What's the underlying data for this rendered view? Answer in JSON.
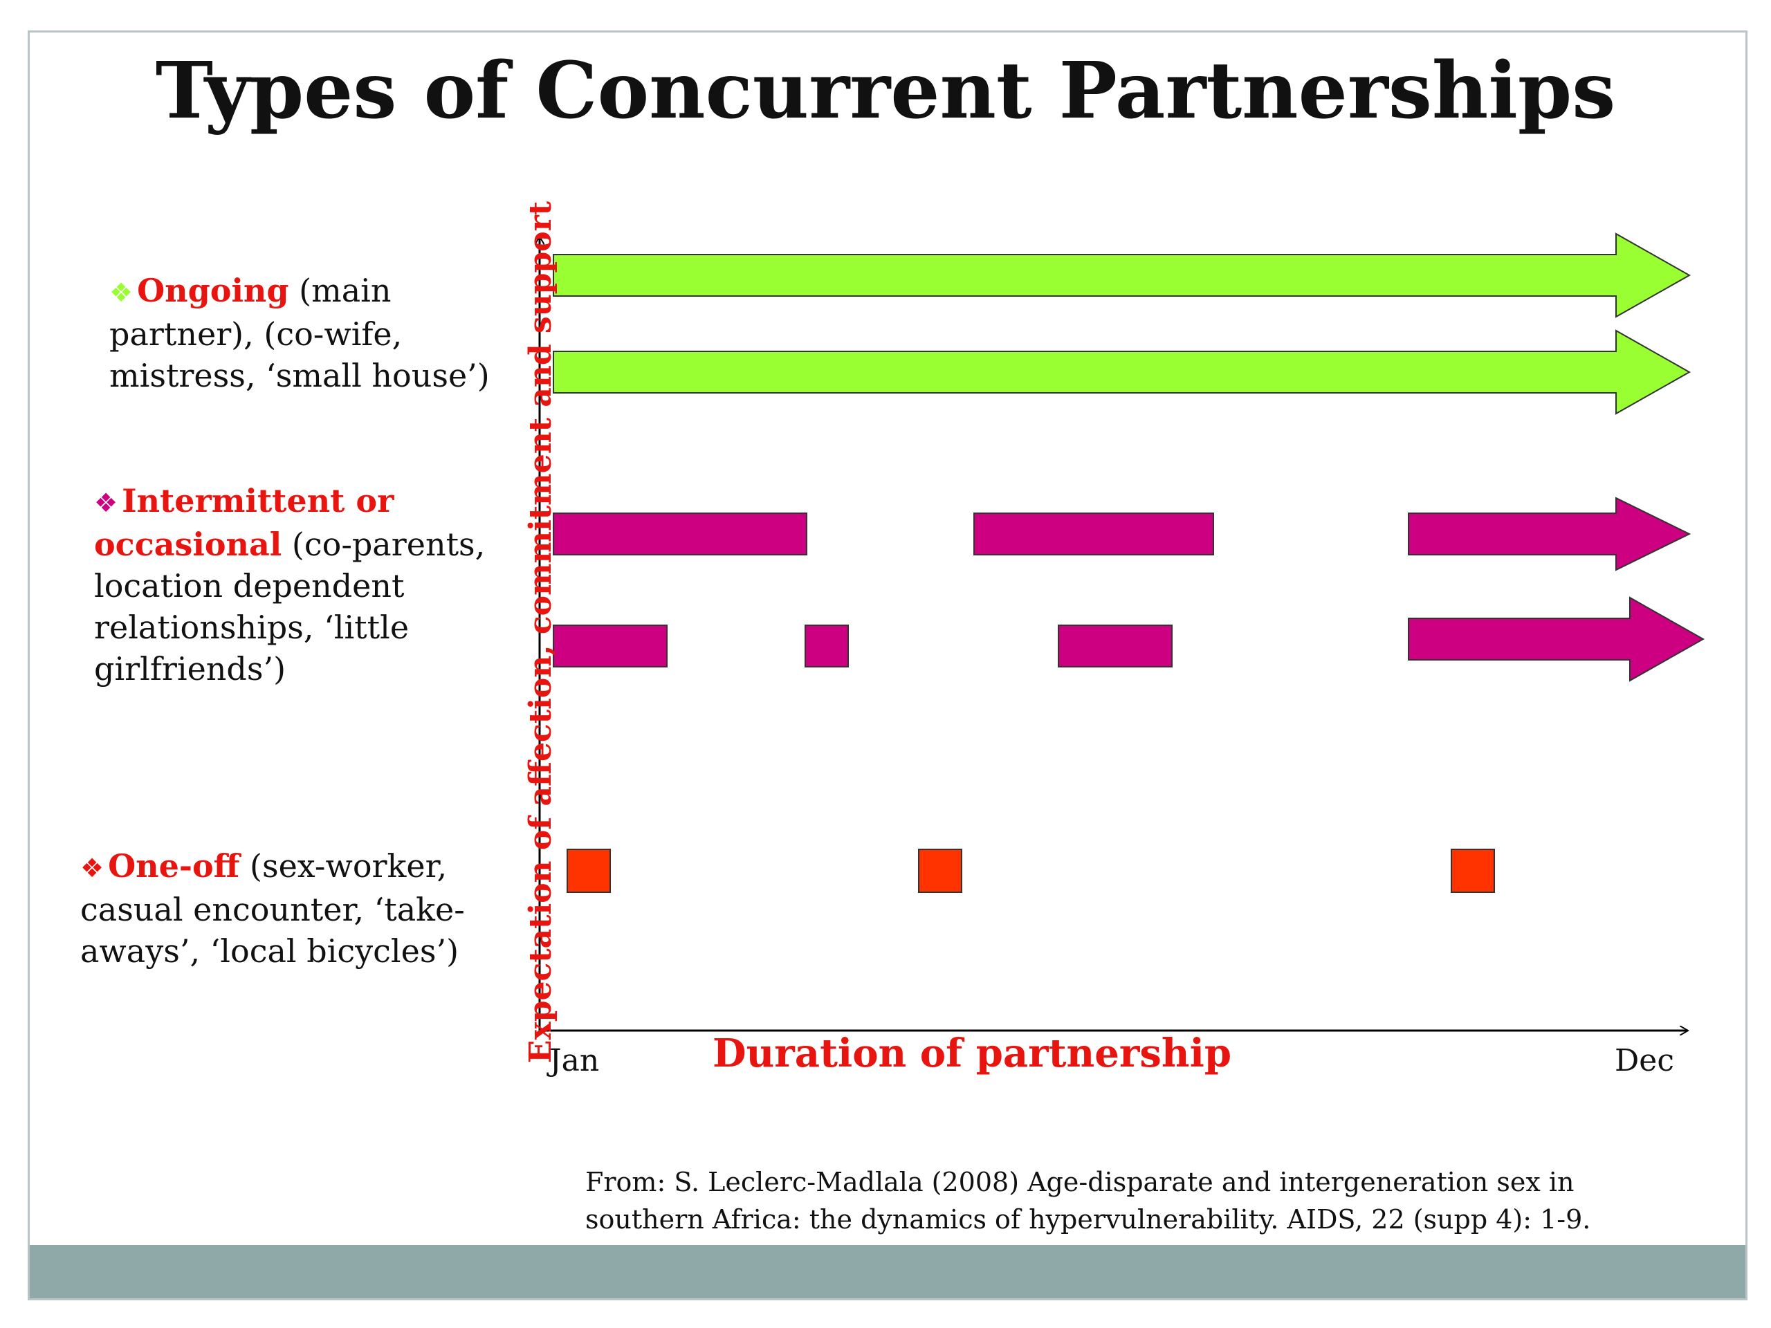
{
  "title": "Types of Concurrent Partnerships",
  "colors": {
    "ongoing": "#99ff33",
    "intermittent": "#cc0080",
    "oneoff": "#ff3300",
    "label_red": "#e8140f",
    "footer": "#8fa8a8"
  },
  "legend": {
    "ongoing": {
      "bullet": "❖",
      "highlight": "Ongoing",
      "rest": " (main partner), (co-wife, mistress, ‘small house’)"
    },
    "intermittent": {
      "bullet": "❖",
      "highlight": "Intermittent or occasional",
      "rest": " (co-parents, location dependent relationships, ‘little girlfriends’)"
    },
    "oneoff": {
      "bullet": "❖",
      "highlight": "One-off",
      "rest": " (sex-worker, casual encounter, ‘take-aways’, ‘local bicycles’)"
    }
  },
  "axes": {
    "x_label": "Duration of partnership",
    "y_label": "Expectation of affection, commitment and support",
    "x_start": "Jan",
    "x_end": "Dec"
  },
  "citation": "From: S. Leclerc-Madlala (2008) Age-disparate and intergeneration sex in southern Africa: the dynamics of hypervulnerability. AIDS, 22 (supp 4): 1-9."
}
